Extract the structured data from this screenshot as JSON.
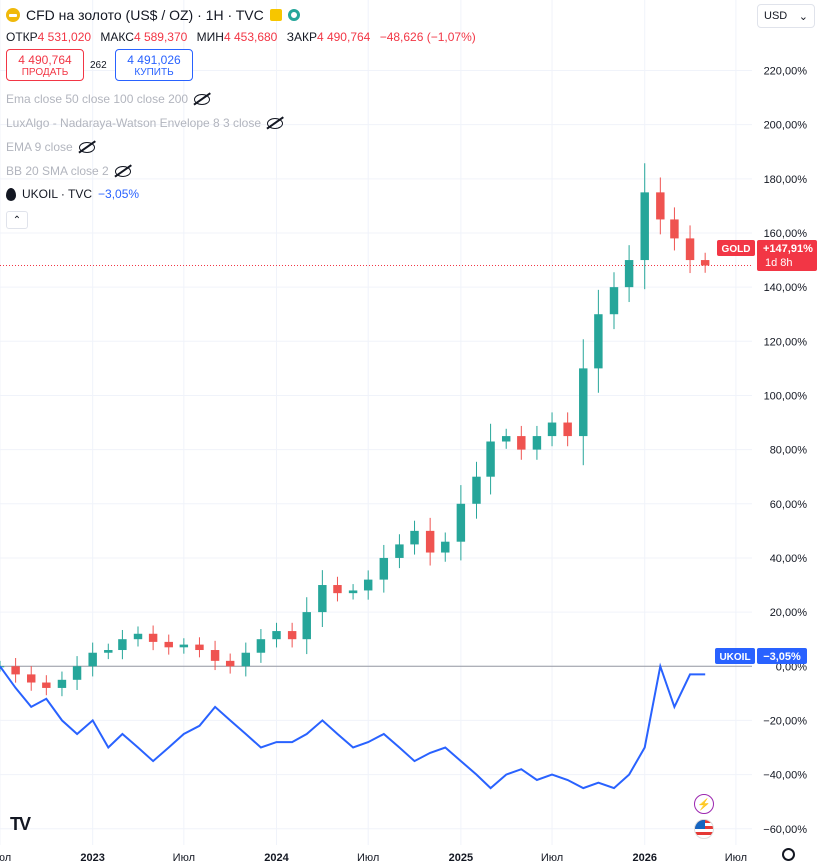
{
  "header": {
    "title": "CFD на золото (US$ / OZ) · 1H · TVC",
    "currency": "USD"
  },
  "ohlc": {
    "open_label": "ОТКР",
    "open": "4 531,020",
    "high_label": "МАКС",
    "high": "4 589,370",
    "low_label": "МИН",
    "low": "4 453,680",
    "close_label": "ЗАКР",
    "close": "4 490,764",
    "change": "−48,626 (−1,07%)"
  },
  "trade": {
    "sell_price": "4 490,764",
    "sell_label": "ПРОДАТЬ",
    "spread": "262",
    "buy_price": "4 491,026",
    "buy_label": "КУПИТЬ"
  },
  "indicators": [
    "Ema close 50 close 100 close 200",
    "LuxAlgo - Nadaraya-Watson Envelope 8 3 close",
    "EMA 9 close",
    "BB 20 SMA close 2"
  ],
  "compare": {
    "symbol": "UKOIL · TVC",
    "change": "−3,05%"
  },
  "badges": {
    "gold_name": "GOLD",
    "gold_value": "+147,91%",
    "gold_countdown": "1d 8h",
    "ukoil_name": "UKOIL",
    "ukoil_value": "−3,05%"
  },
  "colors": {
    "up": "#26a69a",
    "down": "#ef5350",
    "compare_line": "#2962ff",
    "gold_badge": "#f23645"
  },
  "chart_data": {
    "type": "line",
    "yaxis": {
      "unit": "percent",
      "ticks": [
        220,
        200,
        180,
        160,
        140,
        120,
        100,
        80,
        60,
        40,
        20,
        0,
        -20,
        -40,
        -60
      ],
      "tick_labels": [
        "220,00%",
        "200,00%",
        "180,00%",
        "160,00%",
        "140,00%",
        "120,00%",
        "100,00%",
        "80,00%",
        "60,00%",
        "40,00%",
        "20,00%",
        "0,00%",
        "−20,00%",
        "−40,00%",
        "−60,00%"
      ],
      "ylim": [
        -66,
        232
      ]
    },
    "xaxis": {
      "ticks": [
        "2022-07-01",
        "2023-01-01",
        "2023-07-01",
        "2024-01-01",
        "2024-07-01",
        "2025-01-01",
        "2025-07-01",
        "2026-01-01",
        "2026-07-01"
      ],
      "tick_labels": [
        "Июл",
        "2023",
        "Июл",
        "2024",
        "Июл",
        "2025",
        "Июл",
        "2026",
        "Июл"
      ],
      "xlim": [
        "2022-07-01",
        "2026-08-02"
      ]
    },
    "grid": true,
    "series": [
      {
        "name": "GOLD",
        "style": "candles",
        "x": [
          "2022-07-01",
          "2022-08-01",
          "2022-09-01",
          "2022-10-01",
          "2022-11-01",
          "2022-12-01",
          "2023-01-01",
          "2023-02-01",
          "2023-03-01",
          "2023-04-01",
          "2023-05-01",
          "2023-06-01",
          "2023-07-01",
          "2023-08-01",
          "2023-09-01",
          "2023-10-01",
          "2023-11-01",
          "2023-12-01",
          "2024-01-01",
          "2024-02-01",
          "2024-03-01",
          "2024-04-01",
          "2024-05-01",
          "2024-06-01",
          "2024-07-01",
          "2024-08-01",
          "2024-09-01",
          "2024-10-01",
          "2024-11-01",
          "2024-12-01",
          "2025-01-01",
          "2025-02-01",
          "2025-03-01",
          "2025-04-01",
          "2025-05-01",
          "2025-06-01",
          "2025-07-01",
          "2025-08-01",
          "2025-09-01",
          "2025-10-01",
          "2025-11-01",
          "2025-12-01",
          "2026-01-01",
          "2026-02-01",
          "2026-03-01",
          "2026-04-01",
          "2026-05-01"
        ],
        "values": [
          0,
          -3,
          -6,
          -8,
          -5,
          0,
          5,
          6,
          10,
          12,
          9,
          7,
          8,
          6,
          2,
          0,
          5,
          10,
          13,
          10,
          20,
          30,
          27,
          28,
          32,
          40,
          45,
          50,
          42,
          46,
          60,
          70,
          83,
          85,
          80,
          85,
          90,
          85,
          110,
          130,
          140,
          150,
          175,
          165,
          158,
          150,
          148
        ]
      },
      {
        "name": "UKOIL",
        "style": "line",
        "x": [
          "2022-07-01",
          "2022-08-01",
          "2022-09-01",
          "2022-10-01",
          "2022-11-01",
          "2022-12-01",
          "2023-01-01",
          "2023-02-01",
          "2023-03-01",
          "2023-04-01",
          "2023-05-01",
          "2023-06-01",
          "2023-07-01",
          "2023-08-01",
          "2023-09-01",
          "2023-10-01",
          "2023-11-01",
          "2023-12-01",
          "2024-01-01",
          "2024-02-01",
          "2024-03-01",
          "2024-04-01",
          "2024-05-01",
          "2024-06-01",
          "2024-07-01",
          "2024-08-01",
          "2024-09-01",
          "2024-10-01",
          "2024-11-01",
          "2024-12-01",
          "2025-01-01",
          "2025-02-01",
          "2025-03-01",
          "2025-04-01",
          "2025-05-01",
          "2025-06-01",
          "2025-07-01",
          "2025-08-01",
          "2025-09-01",
          "2025-10-01",
          "2025-11-01",
          "2025-12-01",
          "2026-01-01",
          "2026-02-01",
          "2026-03-01",
          "2026-04-01",
          "2026-05-01"
        ],
        "values": [
          0,
          -8,
          -15,
          -12,
          -20,
          -25,
          -20,
          -30,
          -25,
          -30,
          -35,
          -30,
          -25,
          -22,
          -15,
          -20,
          -25,
          -30,
          -28,
          -28,
          -25,
          -20,
          -25,
          -30,
          -28,
          -25,
          -30,
          -35,
          -32,
          -30,
          -35,
          -40,
          -45,
          -40,
          -38,
          -42,
          -40,
          -42,
          -45,
          -43,
          -45,
          -40,
          -30,
          0,
          -15,
          -3,
          -3
        ]
      }
    ]
  }
}
